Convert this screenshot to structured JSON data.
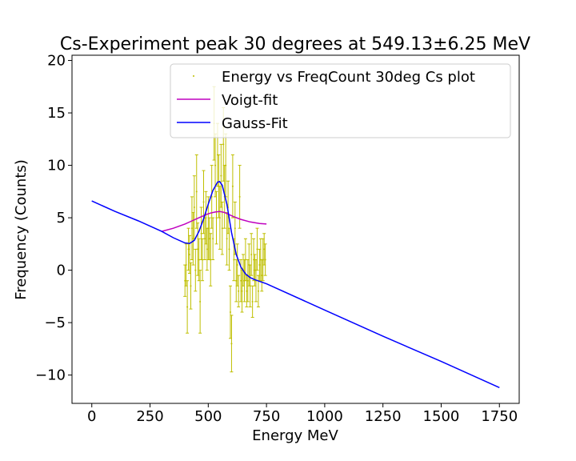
{
  "chart_data": {
    "type": "scatter",
    "title": "Cs-Experiment peak 30 degrees at 549.13±6.25 MeV",
    "xlabel": "Energy MeV",
    "ylabel": "Frequency (Counts)",
    "xlim": [
      -85,
      1835
    ],
    "ylim": [
      -12.7,
      20.5
    ],
    "xticks": [
      0,
      250,
      500,
      750,
      1000,
      1250,
      1500,
      1750
    ],
    "xtick_labels": [
      "0",
      "250",
      "500",
      "750",
      "1000",
      "1250",
      "1500",
      "1750"
    ],
    "yticks": [
      -10,
      -5,
      0,
      5,
      10,
      15,
      20
    ],
    "ytick_labels": [
      "−10",
      "−5",
      "0",
      "5",
      "10",
      "15",
      "20"
    ],
    "grid": false,
    "legend": {
      "placement": "top-right"
    },
    "series": [
      {
        "name": "Energy vs FreqCount 30deg Cs plot",
        "kind": "errorbar",
        "color": "#bfbf00",
        "points": [
          {
            "x": 400,
            "y": -1,
            "err": 1.5
          },
          {
            "x": 405,
            "y": 0.5,
            "err": 2
          },
          {
            "x": 410,
            "y": -3.5,
            "err": 2.5
          },
          {
            "x": 415,
            "y": 2,
            "err": 2
          },
          {
            "x": 420,
            "y": 1.5,
            "err": 1.8
          },
          {
            "x": 425,
            "y": -1.5,
            "err": 2.2
          },
          {
            "x": 430,
            "y": 4,
            "err": 3
          },
          {
            "x": 435,
            "y": 3,
            "err": 2.5
          },
          {
            "x": 440,
            "y": 6,
            "err": 3
          },
          {
            "x": 445,
            "y": 0,
            "err": 2
          },
          {
            "x": 450,
            "y": 7.5,
            "err": 3.5
          },
          {
            "x": 455,
            "y": 2,
            "err": 2.5
          },
          {
            "x": 460,
            "y": 1,
            "err": 2
          },
          {
            "x": 465,
            "y": -3,
            "err": 3
          },
          {
            "x": 470,
            "y": 3.5,
            "err": 2.5
          },
          {
            "x": 475,
            "y": 1,
            "err": 2
          },
          {
            "x": 480,
            "y": 6.5,
            "err": 3
          },
          {
            "x": 485,
            "y": 3,
            "err": 2
          },
          {
            "x": 490,
            "y": 5,
            "err": 2.5
          },
          {
            "x": 495,
            "y": 2,
            "err": 2
          },
          {
            "x": 500,
            "y": 4,
            "err": 3
          },
          {
            "x": 505,
            "y": 3,
            "err": 2
          },
          {
            "x": 510,
            "y": 1,
            "err": 2.5
          },
          {
            "x": 515,
            "y": 7,
            "err": 3
          },
          {
            "x": 520,
            "y": 3,
            "err": 2
          },
          {
            "x": 525,
            "y": 14,
            "err": 3.5
          },
          {
            "x": 530,
            "y": 10,
            "err": 3
          },
          {
            "x": 535,
            "y": 5,
            "err": 2.5
          },
          {
            "x": 540,
            "y": 11,
            "err": 3
          },
          {
            "x": 545,
            "y": 8,
            "err": 3
          },
          {
            "x": 550,
            "y": 5,
            "err": 3
          },
          {
            "x": 555,
            "y": 9,
            "err": 3
          },
          {
            "x": 560,
            "y": 4,
            "err": 2.5
          },
          {
            "x": 565,
            "y": 12,
            "err": 3.5
          },
          {
            "x": 570,
            "y": 7,
            "err": 3
          },
          {
            "x": 575,
            "y": 10,
            "err": 3
          },
          {
            "x": 580,
            "y": 3,
            "err": 2.5
          },
          {
            "x": 585,
            "y": 6,
            "err": 2.5
          },
          {
            "x": 590,
            "y": 2,
            "err": 2
          },
          {
            "x": 595,
            "y": -4,
            "err": 2.5
          },
          {
            "x": 600,
            "y": -7,
            "err": 2.7
          },
          {
            "x": 605,
            "y": 8,
            "err": 3
          },
          {
            "x": 610,
            "y": 1,
            "err": 2
          },
          {
            "x": 615,
            "y": 4,
            "err": 2.5
          },
          {
            "x": 620,
            "y": -1,
            "err": 2
          },
          {
            "x": 625,
            "y": 0.5,
            "err": 2
          },
          {
            "x": 630,
            "y": -2,
            "err": 1.5
          },
          {
            "x": 635,
            "y": 7,
            "err": 3
          },
          {
            "x": 640,
            "y": -1,
            "err": 2
          },
          {
            "x": 645,
            "y": -2,
            "err": 2
          },
          {
            "x": 650,
            "y": 0,
            "err": 1.5
          },
          {
            "x": 655,
            "y": -1,
            "err": 2
          },
          {
            "x": 660,
            "y": 1,
            "err": 2
          },
          {
            "x": 665,
            "y": -2,
            "err": 1.5
          },
          {
            "x": 670,
            "y": -1,
            "err": 2
          },
          {
            "x": 675,
            "y": 0.5,
            "err": 2
          },
          {
            "x": 680,
            "y": -1.5,
            "err": 2
          },
          {
            "x": 685,
            "y": 1.5,
            "err": 2
          },
          {
            "x": 690,
            "y": -3,
            "err": 1.5
          },
          {
            "x": 695,
            "y": 1,
            "err": 2
          },
          {
            "x": 700,
            "y": 0,
            "err": 1.5
          },
          {
            "x": 705,
            "y": -1,
            "err": 2
          },
          {
            "x": 710,
            "y": 2,
            "err": 2
          },
          {
            "x": 715,
            "y": -2,
            "err": 1.5
          },
          {
            "x": 720,
            "y": 0.5,
            "err": 1.5
          },
          {
            "x": 725,
            "y": 1,
            "err": 2
          },
          {
            "x": 730,
            "y": -0.5,
            "err": 1.5
          },
          {
            "x": 735,
            "y": 1,
            "err": 2
          },
          {
            "x": 740,
            "y": 2,
            "err": 1.5
          },
          {
            "x": 745,
            "y": 1,
            "err": 1.5
          }
        ]
      },
      {
        "name": "Voigt-fit",
        "kind": "line",
        "color": "#bf00bf",
        "x": [
          300,
          350,
          400,
          430,
          460,
          490,
          510,
          530,
          549,
          570,
          590,
          610,
          640,
          680,
          720,
          750
        ],
        "y": [
          3.7,
          4.0,
          4.4,
          4.7,
          5.0,
          5.3,
          5.45,
          5.55,
          5.6,
          5.5,
          5.3,
          5.1,
          4.85,
          4.6,
          4.45,
          4.4
        ]
      },
      {
        "name": "Gauss-Fit",
        "kind": "line",
        "color": "#0000ff",
        "x": [
          0,
          100,
          200,
          300,
          350,
          400,
          420,
          440,
          460,
          480,
          500,
          520,
          540,
          549,
          560,
          580,
          600,
          620,
          640,
          660,
          680,
          700,
          750,
          1000,
          1250,
          1500,
          1750
        ],
        "y": [
          6.6,
          5.6,
          4.7,
          3.7,
          3.1,
          2.6,
          2.55,
          2.85,
          3.7,
          4.9,
          6.3,
          7.6,
          8.4,
          8.45,
          8.1,
          6.3,
          3.6,
          1.5,
          0.3,
          -0.35,
          -0.7,
          -0.9,
          -1.3,
          -3.8,
          -6.3,
          -8.7,
          -11.2
        ]
      }
    ]
  }
}
